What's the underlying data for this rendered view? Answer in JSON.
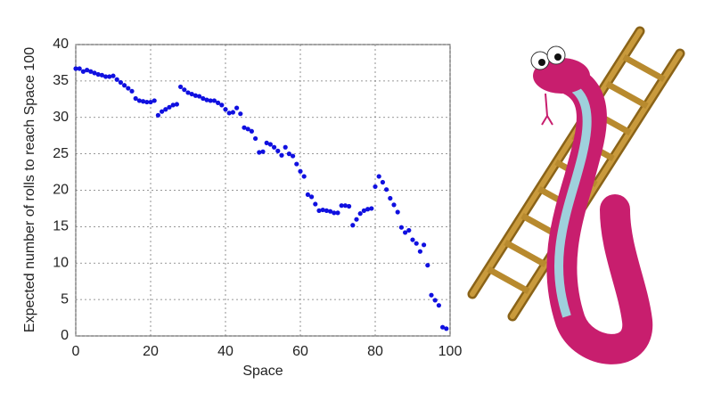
{
  "chart_data": {
    "type": "scatter",
    "x_label": "Space",
    "y_label": "Expected number of rolls to reach Space 100",
    "x": [
      0,
      1,
      2,
      3,
      4,
      5,
      6,
      7,
      8,
      9,
      10,
      11,
      12,
      13,
      14,
      15,
      16,
      17,
      18,
      19,
      20,
      21,
      22,
      23,
      24,
      25,
      26,
      27,
      28,
      29,
      30,
      31,
      32,
      33,
      34,
      35,
      36,
      37,
      38,
      39,
      40,
      41,
      42,
      43,
      44,
      45,
      46,
      47,
      48,
      49,
      50,
      51,
      52,
      53,
      54,
      55,
      56,
      57,
      58,
      59,
      60,
      61,
      62,
      63,
      64,
      65,
      66,
      67,
      68,
      69,
      70,
      71,
      72,
      73,
      74,
      75,
      76,
      77,
      78,
      79,
      80,
      81,
      82,
      83,
      84,
      85,
      86,
      87,
      88,
      89,
      90,
      91,
      92,
      93,
      94,
      95,
      96,
      97,
      98,
      99
    ],
    "values": [
      36.7,
      36.7,
      36.3,
      36.5,
      36.3,
      36.1,
      35.9,
      35.8,
      35.6,
      35.6,
      35.7,
      35.2,
      34.8,
      34.4,
      34.0,
      33.6,
      32.6,
      32.3,
      32.2,
      32.1,
      32.1,
      32.3,
      30.3,
      30.8,
      31.1,
      31.4,
      31.7,
      31.8,
      34.2,
      33.8,
      33.4,
      33.2,
      33.0,
      32.9,
      32.6,
      32.4,
      32.3,
      32.3,
      32.0,
      31.7,
      31.1,
      30.6,
      30.7,
      31.3,
      30.5,
      28.6,
      28.4,
      28.1,
      27.1,
      25.2,
      25.3,
      26.5,
      26.3,
      25.9,
      25.4,
      24.8,
      25.9,
      25.0,
      24.7,
      23.6,
      22.6,
      21.9,
      19.4,
      19.1,
      18.1,
      17.2,
      17.3,
      17.2,
      17.1,
      16.9,
      16.9,
      17.9,
      17.9,
      17.8,
      15.2,
      16.0,
      16.8,
      17.2,
      17.4,
      17.5,
      20.5,
      21.9,
      21.1,
      20.1,
      18.9,
      18.0,
      17.0,
      14.9,
      14.2,
      14.5,
      13.2,
      12.7,
      11.6,
      12.5,
      9.7,
      5.6,
      4.9,
      4.2,
      1.2,
      1.0
    ],
    "color": "#1010e0",
    "xlim": [
      0,
      100
    ],
    "xticks": [
      0,
      20,
      40,
      60,
      80,
      100
    ],
    "ylim": [
      0,
      40
    ],
    "yticks": [
      0,
      5,
      10,
      15,
      20,
      25,
      30,
      35,
      40
    ],
    "grid": true
  }
}
